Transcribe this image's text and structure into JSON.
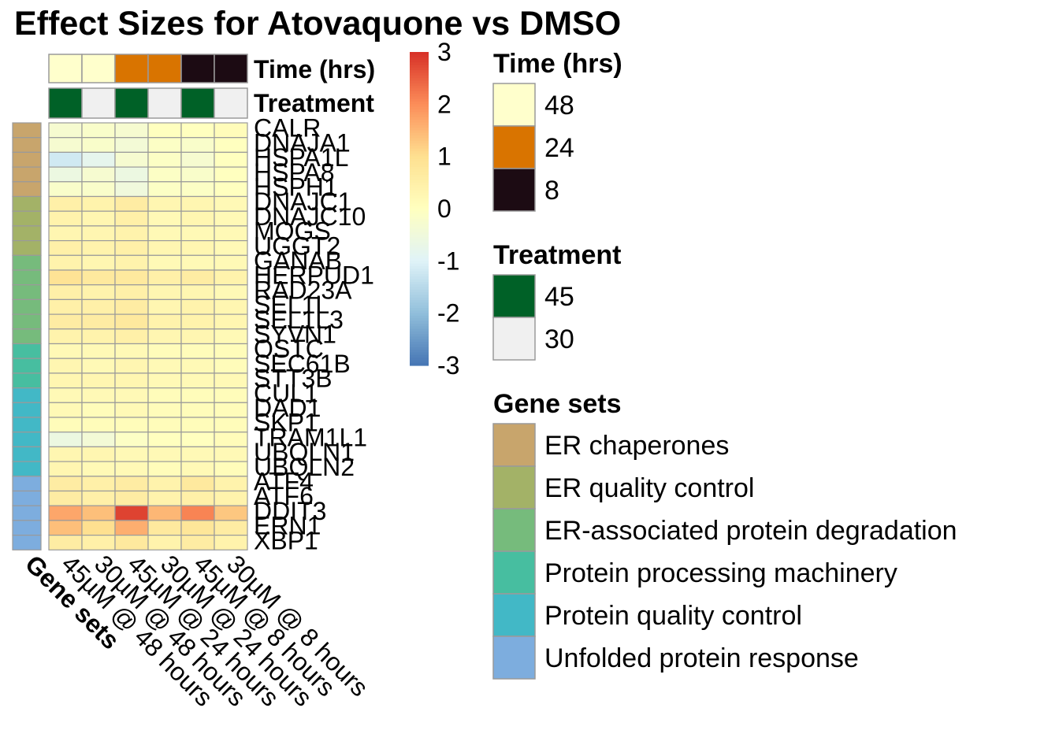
{
  "chart_data": {
    "type": "heatmap",
    "title": "Effect Sizes for Atovaquone vs DMSO",
    "columns": [
      "45µM @ 48 hours",
      "30µM @ 48 hours",
      "45µM @ 24 hours",
      "30µM @ 24 hours",
      "45µM @ 8 hours",
      "30µM @ 8 hours"
    ],
    "column_annotations": {
      "time_label": "Time (hrs)",
      "time": [
        "48",
        "48",
        "24",
        "24",
        "8",
        "8"
      ],
      "treatment_label": "Treatment",
      "treatment": [
        "45",
        "30",
        "45",
        "30",
        "45",
        "30"
      ]
    },
    "row_annotation_label": "Gene sets",
    "rows": [
      {
        "gene": "CALR",
        "set": "ER chaperones",
        "values": [
          -0.3,
          -0.2,
          -0.3,
          0.0,
          0.0,
          0.1
        ]
      },
      {
        "gene": "DNAJA1",
        "set": "ER chaperones",
        "values": [
          -0.3,
          -0.2,
          -0.4,
          -0.1,
          -0.2,
          0.0
        ]
      },
      {
        "gene": "HSPA1L",
        "set": "ER chaperones",
        "values": [
          -1.2,
          -0.8,
          -0.3,
          -0.1,
          -0.3,
          0.0
        ]
      },
      {
        "gene": "HSPA8",
        "set": "ER chaperones",
        "values": [
          -0.6,
          -0.3,
          -0.6,
          -0.1,
          -0.2,
          0.0
        ]
      },
      {
        "gene": "HSPH1",
        "set": "ER chaperones",
        "values": [
          -0.2,
          -0.2,
          -0.5,
          -0.1,
          -0.1,
          0.0
        ]
      },
      {
        "gene": "DNAJC1",
        "set": "ER quality control",
        "values": [
          0.5,
          0.4,
          0.6,
          0.3,
          0.3,
          0.2
        ]
      },
      {
        "gene": "DNAJC10",
        "set": "ER quality control",
        "values": [
          0.4,
          0.3,
          0.5,
          0.2,
          0.3,
          0.2
        ]
      },
      {
        "gene": "MOGS",
        "set": "ER quality control",
        "values": [
          0.3,
          0.3,
          0.4,
          0.2,
          0.2,
          0.2
        ]
      },
      {
        "gene": "UGGT2",
        "set": "ER quality control",
        "values": [
          0.5,
          0.4,
          0.5,
          0.3,
          0.3,
          0.2
        ]
      },
      {
        "gene": "GANAB",
        "set": "ER-associated protein degradation",
        "values": [
          0.4,
          0.3,
          0.4,
          0.2,
          0.2,
          0.2
        ]
      },
      {
        "gene": "HERPUD1",
        "set": "ER-associated protein degradation",
        "values": [
          0.9,
          0.7,
          0.7,
          0.5,
          0.6,
          0.4
        ]
      },
      {
        "gene": "RAD23A",
        "set": "ER-associated protein degradation",
        "values": [
          0.5,
          0.4,
          0.5,
          0.3,
          0.3,
          0.2
        ]
      },
      {
        "gene": "SEL1L",
        "set": "ER-associated protein degradation",
        "values": [
          0.5,
          0.5,
          0.6,
          0.3,
          0.4,
          0.3
        ]
      },
      {
        "gene": "SEL1L3",
        "set": "ER-associated protein degradation",
        "values": [
          0.6,
          0.6,
          0.7,
          0.4,
          0.4,
          0.3
        ]
      },
      {
        "gene": "SYVN1",
        "set": "ER-associated protein degradation",
        "values": [
          0.4,
          0.4,
          0.5,
          0.3,
          0.3,
          0.2
        ]
      },
      {
        "gene": "OSTC",
        "set": "Protein processing machinery",
        "values": [
          0.2,
          0.2,
          0.2,
          0.1,
          0.1,
          0.1
        ]
      },
      {
        "gene": "SEC61B",
        "set": "Protein processing machinery",
        "values": [
          0.3,
          0.2,
          0.3,
          0.2,
          0.2,
          0.1
        ]
      },
      {
        "gene": "STT3B",
        "set": "Protein processing machinery",
        "values": [
          0.3,
          0.3,
          0.3,
          0.2,
          0.2,
          0.2
        ]
      },
      {
        "gene": "CUL1",
        "set": "Protein quality control",
        "values": [
          0.2,
          0.2,
          0.2,
          0.1,
          0.1,
          0.1
        ]
      },
      {
        "gene": "DAD1",
        "set": "Protein quality control",
        "values": [
          0.2,
          0.1,
          0.2,
          0.1,
          0.1,
          0.1
        ]
      },
      {
        "gene": "SKP1",
        "set": "Protein quality control",
        "values": [
          0.1,
          0.1,
          0.1,
          0.1,
          0.1,
          0.1
        ]
      },
      {
        "gene": "TRAM1L1",
        "set": "Protein quality control",
        "values": [
          -0.6,
          -0.4,
          -0.1,
          0.0,
          0.0,
          0.1
        ]
      },
      {
        "gene": "UBQLN1",
        "set": "Protein quality control",
        "values": [
          0.3,
          0.3,
          0.2,
          0.2,
          0.2,
          0.2
        ]
      },
      {
        "gene": "UBQLN2",
        "set": "Protein quality control",
        "values": [
          0.3,
          0.2,
          0.2,
          0.1,
          0.2,
          0.1
        ]
      },
      {
        "gene": "ATF4",
        "set": "Unfolded protein response",
        "values": [
          0.6,
          0.5,
          0.6,
          0.4,
          0.7,
          0.4
        ]
      },
      {
        "gene": "ATF6",
        "set": "Unfolded protein response",
        "values": [
          0.6,
          0.5,
          0.6,
          0.4,
          0.5,
          0.4
        ]
      },
      {
        "gene": "DDIT3",
        "set": "Unfolded protein response",
        "values": [
          1.7,
          1.4,
          2.8,
          1.5,
          2.1,
          1.3
        ]
      },
      {
        "gene": "ERN1",
        "set": "Unfolded protein response",
        "values": [
          1.4,
          1.0,
          1.6,
          0.7,
          0.8,
          0.6
        ]
      },
      {
        "gene": "XBP1",
        "set": "Unfolded protein response",
        "values": [
          0.6,
          0.5,
          0.7,
          0.4,
          0.6,
          0.4
        ]
      }
    ],
    "color_scale": {
      "range": [
        -3,
        3
      ],
      "ticks": [
        3,
        2,
        1,
        0,
        -1,
        -2,
        -3
      ],
      "tick_labels": [
        "3",
        "2",
        "1",
        "0",
        "-1",
        "-2",
        "-3"
      ],
      "palette": [
        "#4575b4",
        "#91bfdb",
        "#e0f3f8",
        "#ffffbf",
        "#fee090",
        "#fc8d59",
        "#d73027"
      ]
    },
    "legends": [
      {
        "title": "Time (hrs)",
        "entries": [
          {
            "label": "48",
            "color": "#ffffcc"
          },
          {
            "label": "24",
            "color": "#d97400"
          },
          {
            "label": "8",
            "color": "#1c0b13"
          }
        ]
      },
      {
        "title": "Treatment",
        "entries": [
          {
            "label": "45",
            "color": "#006127"
          },
          {
            "label": "30",
            "color": "#f0f0f0"
          }
        ]
      },
      {
        "title": "Gene sets",
        "entries": [
          {
            "label": "ER chaperones",
            "color": "#c8a56c"
          },
          {
            "label": "ER quality control",
            "color": "#a3b267"
          },
          {
            "label": "ER-associated protein degradation",
            "color": "#76bb7c"
          },
          {
            "label": "Protein processing machinery",
            "color": "#47bea0"
          },
          {
            "label": "Protein quality control",
            "color": "#42b8c6"
          },
          {
            "label": "Unfolded protein response",
            "color": "#7dadde"
          }
        ]
      }
    ]
  }
}
